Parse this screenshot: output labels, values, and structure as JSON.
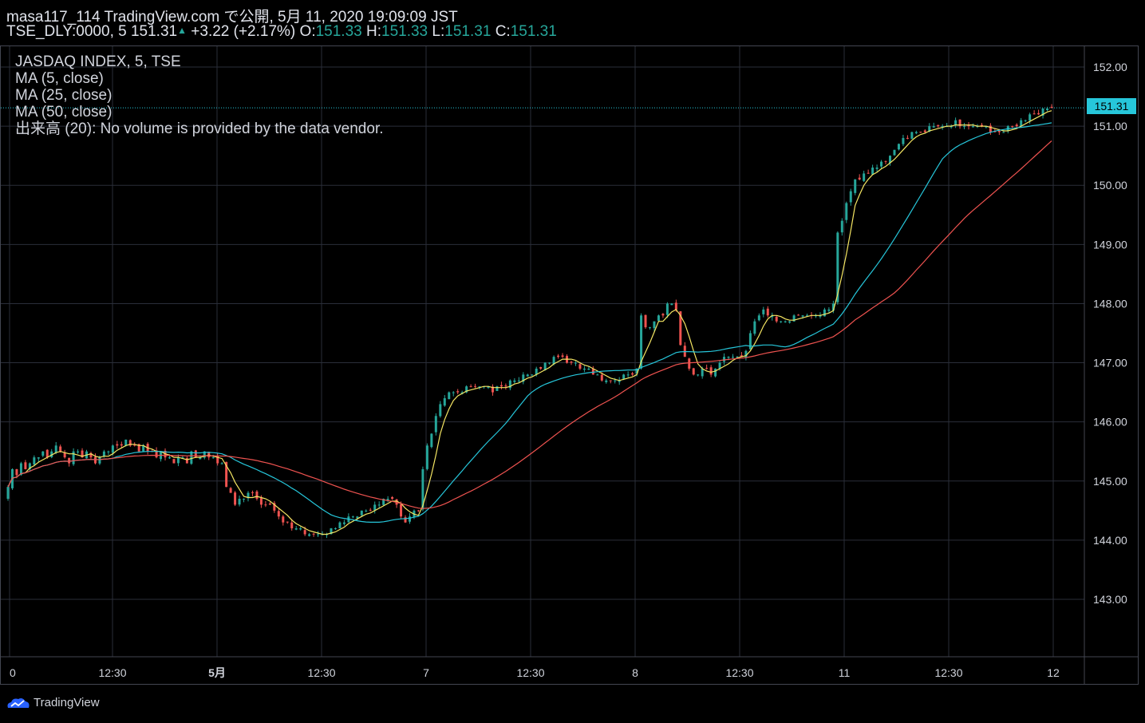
{
  "header": {
    "line1": "masa117_114 TradingView.com で公開, 5月 11, 2020 19:09:09 JST",
    "symbol": "TSE_DLY:0000, 5",
    "last": "151.31",
    "change": "+3.22 (+2.17%)",
    "o_label": "O:",
    "o_value": "151.33",
    "h_label": "H:",
    "h_value": "151.33",
    "l_label": "L:",
    "l_value": "151.31",
    "c_label": "C:",
    "c_value": "151.31"
  },
  "legend": {
    "title": "JASDAQ INDEX, 5, TSE",
    "ma5": "MA (5, close)",
    "ma25": "MA (25, close)",
    "ma50": "MA (50, close)",
    "volume": "出来高 (20): No volume is provided by the data vendor."
  },
  "price_tag": "151.31",
  "brand": "TradingView",
  "colors": {
    "up": "#26a69a",
    "down": "#ef5350",
    "ma5": "#f5e663",
    "ma25": "#26c6da",
    "ma50": "#ef5350",
    "grid": "#2a2e39",
    "price_line": "#26c6da"
  },
  "chart_data": {
    "type": "candlestick",
    "x_ticks": [
      "0",
      "12:30",
      "5月",
      "12:30",
      "7",
      "12:30",
      "8",
      "12:30",
      "11",
      "12:30",
      "12"
    ],
    "y_ticks": [
      "152.00",
      "151.00",
      "150.00",
      "149.00",
      "148.00",
      "147.00",
      "146.00",
      "145.00",
      "144.00",
      "143.00"
    ],
    "ylim": [
      142.0,
      152.4
    ],
    "last_price": 151.31,
    "closes": [
      144.9,
      145.2,
      145.1,
      145.3,
      145.2,
      145.3,
      145.4,
      145.4,
      145.5,
      145.4,
      145.5,
      145.6,
      145.5,
      145.4,
      145.3,
      145.5,
      145.5,
      145.4,
      145.5,
      145.4,
      145.3,
      145.4,
      145.5,
      145.5,
      145.6,
      145.6,
      145.6,
      145.7,
      145.6,
      145.6,
      145.5,
      145.6,
      145.5,
      145.5,
      145.4,
      145.5,
      145.4,
      145.4,
      145.3,
      145.4,
      145.4,
      145.3,
      145.5,
      145.4,
      145.4,
      145.5,
      145.4,
      145.4,
      145.3,
      145.3,
      144.9,
      144.8,
      144.6,
      144.7,
      144.7,
      144.8,
      144.8,
      144.7,
      144.6,
      144.6,
      144.6,
      144.5,
      144.4,
      144.3,
      144.3,
      144.2,
      144.2,
      144.2,
      144.1,
      144.1,
      144.1,
      144.1,
      144.1,
      144.1,
      144.2,
      144.2,
      144.3,
      144.3,
      144.4,
      144.4,
      144.4,
      144.5,
      144.5,
      144.5,
      144.6,
      144.6,
      144.7,
      144.7,
      144.7,
      144.6,
      144.4,
      144.3,
      144.4,
      144.5,
      144.5,
      145.2,
      145.6,
      145.8,
      146.1,
      146.3,
      146.4,
      146.5,
      146.5,
      146.5,
      146.5,
      146.6,
      146.6,
      146.6,
      146.6,
      146.6,
      146.6,
      146.5,
      146.6,
      146.6,
      146.6,
      146.7,
      146.7,
      146.7,
      146.8,
      146.8,
      146.8,
      146.9,
      146.9,
      147.0,
      147.0,
      147.1,
      147.1,
      147.1,
      147.0,
      147.0,
      147.0,
      146.9,
      146.9,
      146.9,
      146.8,
      146.8,
      146.7,
      146.7,
      146.7,
      146.7,
      146.7,
      146.8,
      146.8,
      146.8,
      146.9,
      147.8,
      147.6,
      147.6,
      147.7,
      147.8,
      147.8,
      148.0,
      148.0,
      147.9,
      147.3,
      147.1,
      146.9,
      146.8,
      146.8,
      146.9,
      146.9,
      146.8,
      146.9,
      147.0,
      147.1,
      147.1,
      147.1,
      147.1,
      147.1,
      147.2,
      147.5,
      147.7,
      147.8,
      147.9,
      147.8,
      147.8,
      147.7,
      147.7,
      147.7,
      147.7,
      147.8,
      147.8,
      147.8,
      147.8,
      147.8,
      147.8,
      147.8,
      147.9,
      147.9,
      148.0,
      149.2,
      149.4,
      149.7,
      149.9,
      150.1,
      150.1,
      150.2,
      150.2,
      150.3,
      150.3,
      150.4,
      150.4,
      150.5,
      150.6,
      150.7,
      150.8,
      150.8,
      150.9,
      150.9,
      150.9,
      150.9,
      151.0,
      151.0,
      151.0,
      151.0,
      151.0,
      151.0,
      151.1,
      151.0,
      151.0,
      151.0,
      151.0,
      151.0,
      151.0,
      151.0,
      150.9,
      150.9,
      150.9,
      150.9,
      151.0,
      151.0,
      151.0,
      151.1,
      151.1,
      151.2,
      151.2,
      151.2,
      151.3,
      151.3,
      151.31
    ]
  }
}
